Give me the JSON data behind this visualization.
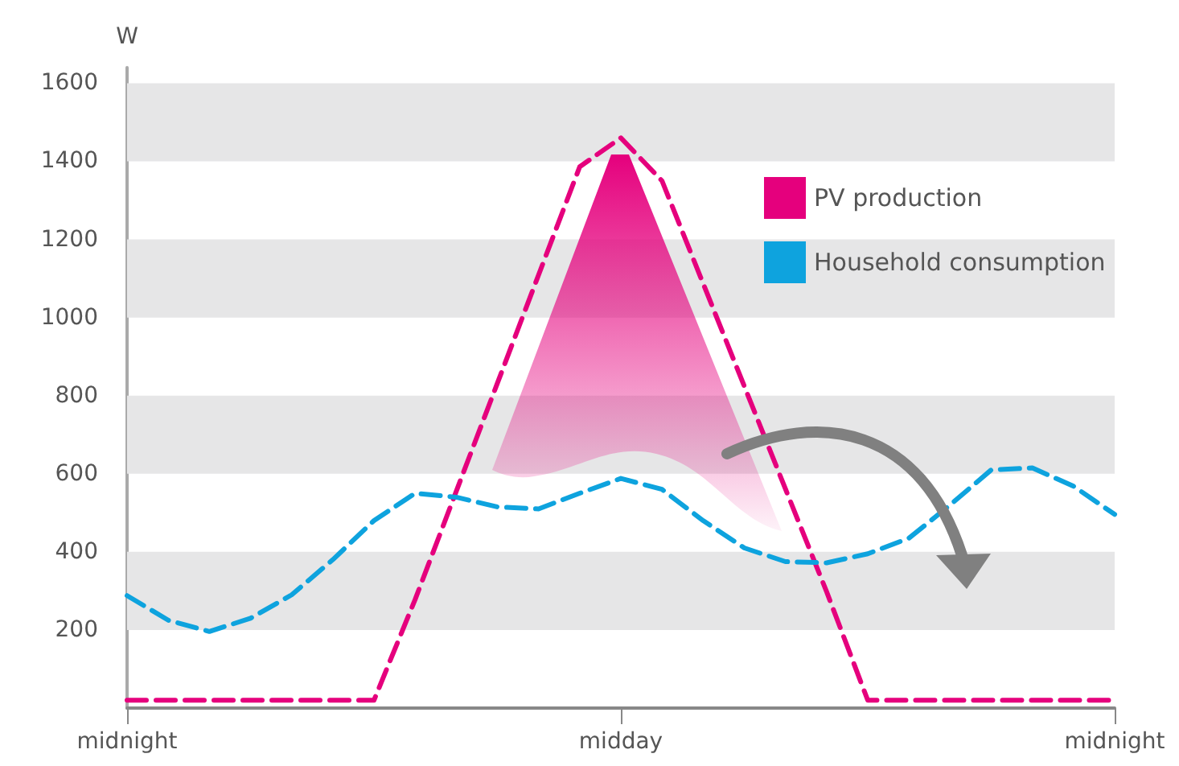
{
  "chart_data": {
    "type": "line",
    "ylabel": "W",
    "categories": [
      "midnight",
      null,
      null,
      null,
      null,
      null,
      null,
      null,
      null,
      null,
      null,
      null,
      "midday",
      null,
      null,
      null,
      null,
      null,
      null,
      null,
      null,
      null,
      null,
      null,
      "midnight"
    ],
    "ylim": [
      0,
      1640
    ],
    "yticks": [
      200,
      400,
      600,
      800,
      1000,
      1200,
      1400,
      1600
    ],
    "series": [
      {
        "name": "PV production",
        "color": "#e5007d",
        "values": [
          20,
          20,
          20,
          20,
          20,
          20,
          20,
          278,
          555,
          832,
          1109,
          1386,
          1460,
          1350,
          1087,
          824,
          561,
          298,
          20,
          20,
          20,
          20,
          20,
          20,
          20
        ]
      },
      {
        "name": "Household consumption",
        "color": "#0ea3de",
        "values": [
          288,
          225,
          196,
          230,
          290,
          380,
          480,
          550,
          540,
          515,
          510,
          550,
          588,
          560,
          480,
          410,
          375,
          372,
          395,
          435,
          520,
          610,
          615,
          568,
          496
        ]
      }
    ],
    "bands": [
      {
        "axis": "y",
        "from": 200,
        "to": 400,
        "color": "#e6e6e7"
      },
      {
        "axis": "y",
        "from": 600,
        "to": 800,
        "color": "#e6e6e7"
      },
      {
        "axis": "y",
        "from": 1000,
        "to": 1200,
        "color": "#e6e6e7"
      },
      {
        "axis": "y",
        "from": 1400,
        "to": 1600,
        "color": "#e6e6e7"
      }
    ],
    "grid": false,
    "legend": "top right",
    "marker": "none",
    "line_style": "dashed"
  }
}
